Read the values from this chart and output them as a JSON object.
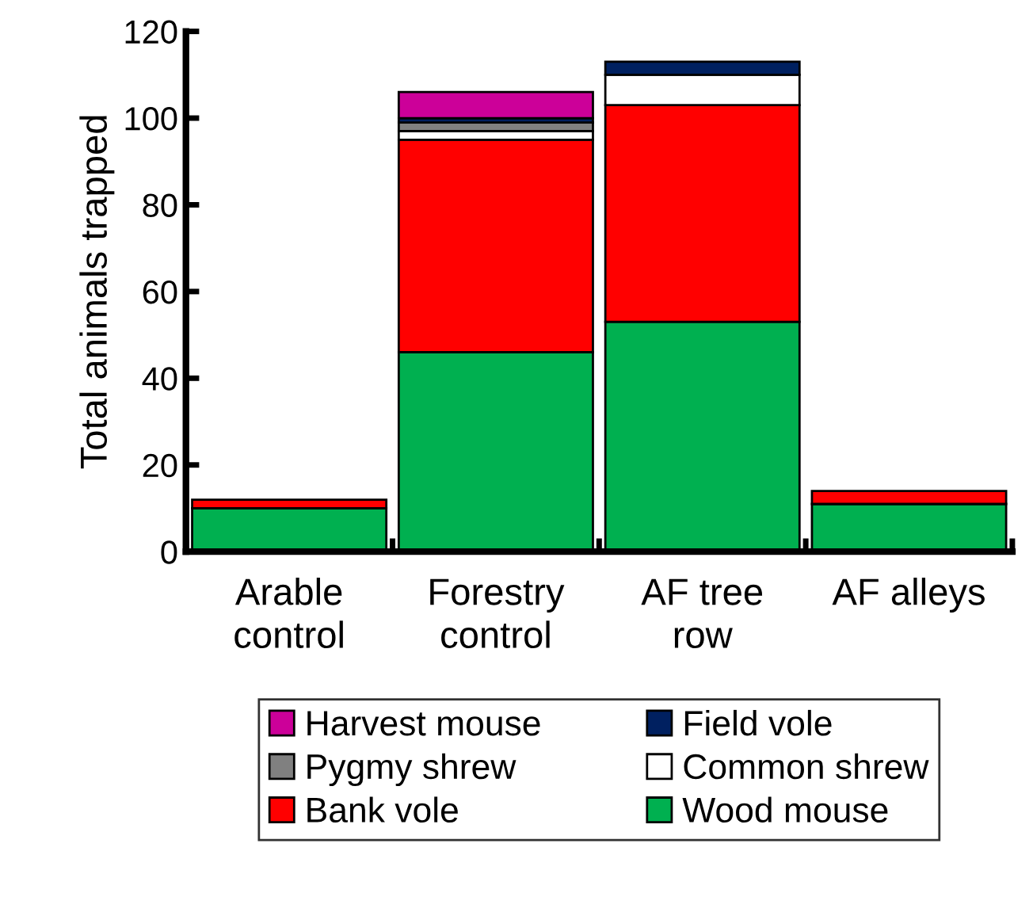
{
  "chart_data": {
    "type": "bar",
    "stacked": true,
    "ylabel": "Total animals trapped",
    "categories": [
      "Arable\ncontrol",
      "Forestry\ncontrol",
      "AF tree\nrow",
      "AF alleys"
    ],
    "series": [
      {
        "name": "Wood mouse",
        "color": "#00b050",
        "values": [
          10,
          46,
          53,
          11
        ]
      },
      {
        "name": "Bank vole",
        "color": "#ff0000",
        "values": [
          2,
          49,
          50,
          3
        ]
      },
      {
        "name": "Common shrew",
        "color": "#ffffff",
        "values": [
          null,
          2,
          7,
          null
        ]
      },
      {
        "name": "Pygmy shrew",
        "color": "#808080",
        "values": [
          null,
          2,
          null,
          null
        ]
      },
      {
        "name": "Field vole",
        "color": "#002060",
        "values": [
          null,
          1,
          3,
          null
        ]
      },
      {
        "name": "Harvest mouse",
        "color": "#cc0099",
        "values": [
          null,
          6,
          null,
          null
        ]
      }
    ],
    "ylim": [
      0,
      120
    ],
    "yticks": [
      0,
      20,
      40,
      60,
      80,
      100,
      120
    ],
    "grid": false,
    "legend": "bottom"
  }
}
